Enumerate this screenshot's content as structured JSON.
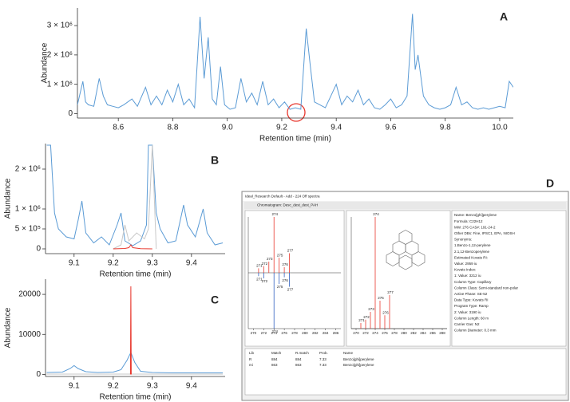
{
  "chart_data": [
    {
      "type": "line",
      "panel": "A",
      "xlabel": "Retention time (min)",
      "ylabel": "Abundance",
      "xlim": [
        8.45,
        10.05
      ],
      "xticks": [
        8.6,
        8.8,
        {
          "value": 9.0,
          "label": "9.0"
        },
        9.2,
        9.4,
        9.6,
        9.8,
        {
          "value": 10.0,
          "label": "10.0"
        }
      ],
      "ylim": [
        -150000,
        3600000
      ],
      "yticks": [
        0,
        {
          "value": 1000000,
          "label": "1 × 10⁶"
        },
        {
          "value": 2000000,
          "label": "2 × 10⁶"
        },
        {
          "value": 3000000,
          "label": "3 × 10⁶"
        }
      ],
      "series": [
        {
          "color": "#5b9bd5",
          "x": [
            8.45,
            8.47,
            8.48,
            8.49,
            8.51,
            8.53,
            8.545,
            8.56,
            8.58,
            8.6,
            8.62,
            8.65,
            8.67,
            8.7,
            8.72,
            8.74,
            8.76,
            8.78,
            8.8,
            8.82,
            8.84,
            8.86,
            8.88,
            8.9,
            8.915,
            8.93,
            8.945,
            8.96,
            8.975,
            8.99,
            9.01,
            9.03,
            9.05,
            9.07,
            9.09,
            9.11,
            9.13,
            9.15,
            9.17,
            9.19,
            9.21,
            9.23,
            9.25,
            9.27,
            9.29,
            9.305,
            9.32,
            9.34,
            9.36,
            9.38,
            9.4,
            9.42,
            9.44,
            9.46,
            9.48,
            9.5,
            9.52,
            9.54,
            9.56,
            9.58,
            9.6,
            9.62,
            9.64,
            9.66,
            9.68,
            9.69,
            9.7,
            9.72,
            9.74,
            9.76,
            9.78,
            9.8,
            9.82,
            9.84,
            9.86,
            9.88,
            9.9,
            9.92,
            9.94,
            9.96,
            9.98,
            10.0,
            10.02,
            10.035,
            10.05
          ],
          "values": [
            300000,
            1100000,
            400000,
            300000,
            250000,
            1200000,
            600000,
            300000,
            250000,
            200000,
            300000,
            500000,
            250000,
            900000,
            300000,
            600000,
            300000,
            800000,
            400000,
            1000000,
            300000,
            500000,
            200000,
            3300000,
            1200000,
            2600000,
            500000,
            300000,
            1600000,
            300000,
            150000,
            200000,
            1200000,
            400000,
            700000,
            300000,
            1100000,
            300000,
            500000,
            200000,
            400000,
            150000,
            200000,
            150000,
            2900000,
            1600000,
            400000,
            300000,
            200000,
            600000,
            1000000,
            300000,
            600000,
            400000,
            800000,
            300000,
            500000,
            200000,
            150000,
            300000,
            500000,
            200000,
            300000,
            600000,
            3400000,
            1500000,
            2000000,
            600000,
            300000,
            200000,
            150000,
            200000,
            300000,
            900000,
            300000,
            400000,
            200000,
            150000,
            200000,
            150000,
            200000,
            250000,
            200000,
            1100000,
            900000
          ]
        }
      ]
    },
    {
      "type": "line",
      "panel": "B",
      "xlabel": "Retention time (min)",
      "ylabel": "Abundance",
      "xlim": [
        9.027,
        9.486
      ],
      "xticks": [
        9.1,
        9.2,
        9.3,
        9.4
      ],
      "ylim": [
        -120000,
        2640000
      ],
      "yticks": [
        0,
        {
          "value": 500000,
          "label": "5 × 10⁵"
        },
        {
          "value": 1000000,
          "label": "1 × 10⁶"
        },
        {
          "value": 2000000,
          "label": "2 × 10⁶"
        }
      ],
      "series": [
        {
          "color": "#5b9bd5",
          "x": [
            9.03,
            9.04,
            9.05,
            9.06,
            9.07,
            9.08,
            9.1,
            9.11,
            9.12,
            9.13,
            9.15,
            9.17,
            9.19,
            9.21,
            9.22,
            9.23,
            9.25,
            9.27,
            9.285,
            9.29,
            9.3,
            9.31,
            9.32,
            9.34,
            9.36,
            9.38,
            9.39,
            9.41,
            9.43,
            9.44,
            9.46,
            9.48
          ],
          "values": [
            2600000,
            2600000,
            900000,
            500000,
            400000,
            300000,
            250000,
            700000,
            1200000,
            400000,
            150000,
            300000,
            100000,
            600000,
            900000,
            200000,
            80000,
            200000,
            600000,
            2600000,
            2600000,
            900000,
            500000,
            150000,
            200000,
            1100000,
            600000,
            300000,
            1000000,
            400000,
            100000,
            150000
          ]
        },
        {
          "color": "#c8c8c8",
          "x": [
            9.2,
            9.22,
            9.23,
            9.24,
            9.26,
            9.28,
            9.29,
            9.3,
            9.31
          ],
          "values": [
            0,
            100000,
            600000,
            200000,
            400000,
            250000,
            500000,
            2600000,
            0
          ]
        },
        {
          "color": "#e8382e",
          "x": [
            9.2,
            9.23,
            9.24,
            9.245,
            9.25,
            9.27,
            9.3
          ],
          "values": [
            0,
            10000,
            30000,
            100000,
            30000,
            5000,
            0
          ]
        }
      ]
    },
    {
      "type": "line",
      "panel": "C",
      "xlabel": "Retention time (min)",
      "ylabel": "Abundance",
      "xlim": [
        9.027,
        9.486
      ],
      "xticks": [
        9.1,
        9.2,
        9.3,
        9.4
      ],
      "ylim": [
        -500,
        23800
      ],
      "yticks": [
        0,
        10000,
        20000
      ],
      "series": [
        {
          "color": "#c8c8c8",
          "x": [
            9.03,
            9.48
          ],
          "values": [
            100,
            100
          ]
        },
        {
          "color": "#5b9bd5",
          "x": [
            9.03,
            9.07,
            9.09,
            9.1,
            9.11,
            9.13,
            9.16,
            9.2,
            9.22,
            9.235,
            9.245,
            9.255,
            9.27,
            9.3,
            9.35,
            9.4,
            9.45,
            9.48
          ],
          "values": [
            500,
            600,
            1500,
            2200,
            1500,
            700,
            500,
            600,
            1200,
            3500,
            5500,
            3000,
            800,
            500,
            400,
            400,
            400,
            400
          ]
        },
        {
          "color": "#e8382e",
          "x": [
            9.244,
            9.245,
            9.246
          ],
          "values": [
            0,
            22000,
            0
          ]
        }
      ]
    },
    {
      "type": "stem",
      "xlim": [
        269,
        287
      ],
      "xticks": [
        270,
        272,
        274,
        276,
        278,
        280,
        282,
        284,
        286
      ],
      "ylim": [
        -100,
        100
      ],
      "series": [
        {
          "color": "#e8382e",
          "x": [
            271,
            272,
            273,
            274,
            275,
            276,
            277
          ],
          "values": [
            8,
            12,
            20,
            100,
            27,
            10,
            35
          ]
        },
        {
          "color": "#3060c0",
          "x": [
            271,
            272,
            274,
            275,
            276,
            277
          ],
          "values": [
            -6,
            -10,
            -100,
            -20,
            -8,
            -25
          ]
        }
      ]
    },
    {
      "type": "stem",
      "xlim": [
        269,
        289
      ],
      "xticks": [
        270,
        272,
        274,
        276,
        278,
        280,
        282,
        284,
        286,
        288
      ],
      "ylim": [
        0,
        100
      ],
      "series": [
        {
          "color": "#e8382e",
          "x": [
            271,
            272,
            273,
            274,
            275,
            276,
            277
          ],
          "values": [
            5,
            8,
            15,
            100,
            25,
            12,
            30
          ]
        }
      ]
    }
  ],
  "screenshot": {
    "panel": "D",
    "window_title": "Ideal_Research Default - Add - 224 Off spectra",
    "chromatogram_label": "Chromatogram: Desc_dest_dest_PAH",
    "info_lines": [
      "Name: Benzo[ghi]perylene",
      "Formula: C22H12",
      "MW: 276 CAS#: 191-24-2",
      "Other DBs: Fine, IPSC1, EPA, NIOSH",
      "Synonyms:",
      "1.Benzo-1,12-perylene",
      "2.1,12-Benzoperylene",
      "Estimated Kovats RI:",
      "Value: 2959 iu",
      "Kovats Index:",
      "1: Value: 3212 iu",
      "Column Type: Capillary",
      "Column Class: Semi-standard non-polar",
      "Active Phase: SE-52",
      "Data Type: Kovats RI",
      "Program Type: Ramp",
      "2: Value: 3190 iu",
      "Column Length: 60 m",
      "Carrier Gas: N2",
      "Column Diameter: 0.3 mm"
    ],
    "table_headers": [
      "Lib",
      "Match",
      "R.match",
      "Prob.",
      "Name"
    ],
    "table_rows": [
      [
        "R",
        "884",
        "884",
        "7.33",
        "Benzo[ghi]perylene"
      ],
      [
        "mi",
        "863",
        "863",
        "7.33",
        "Benzo[ghi]perylene"
      ]
    ]
  }
}
